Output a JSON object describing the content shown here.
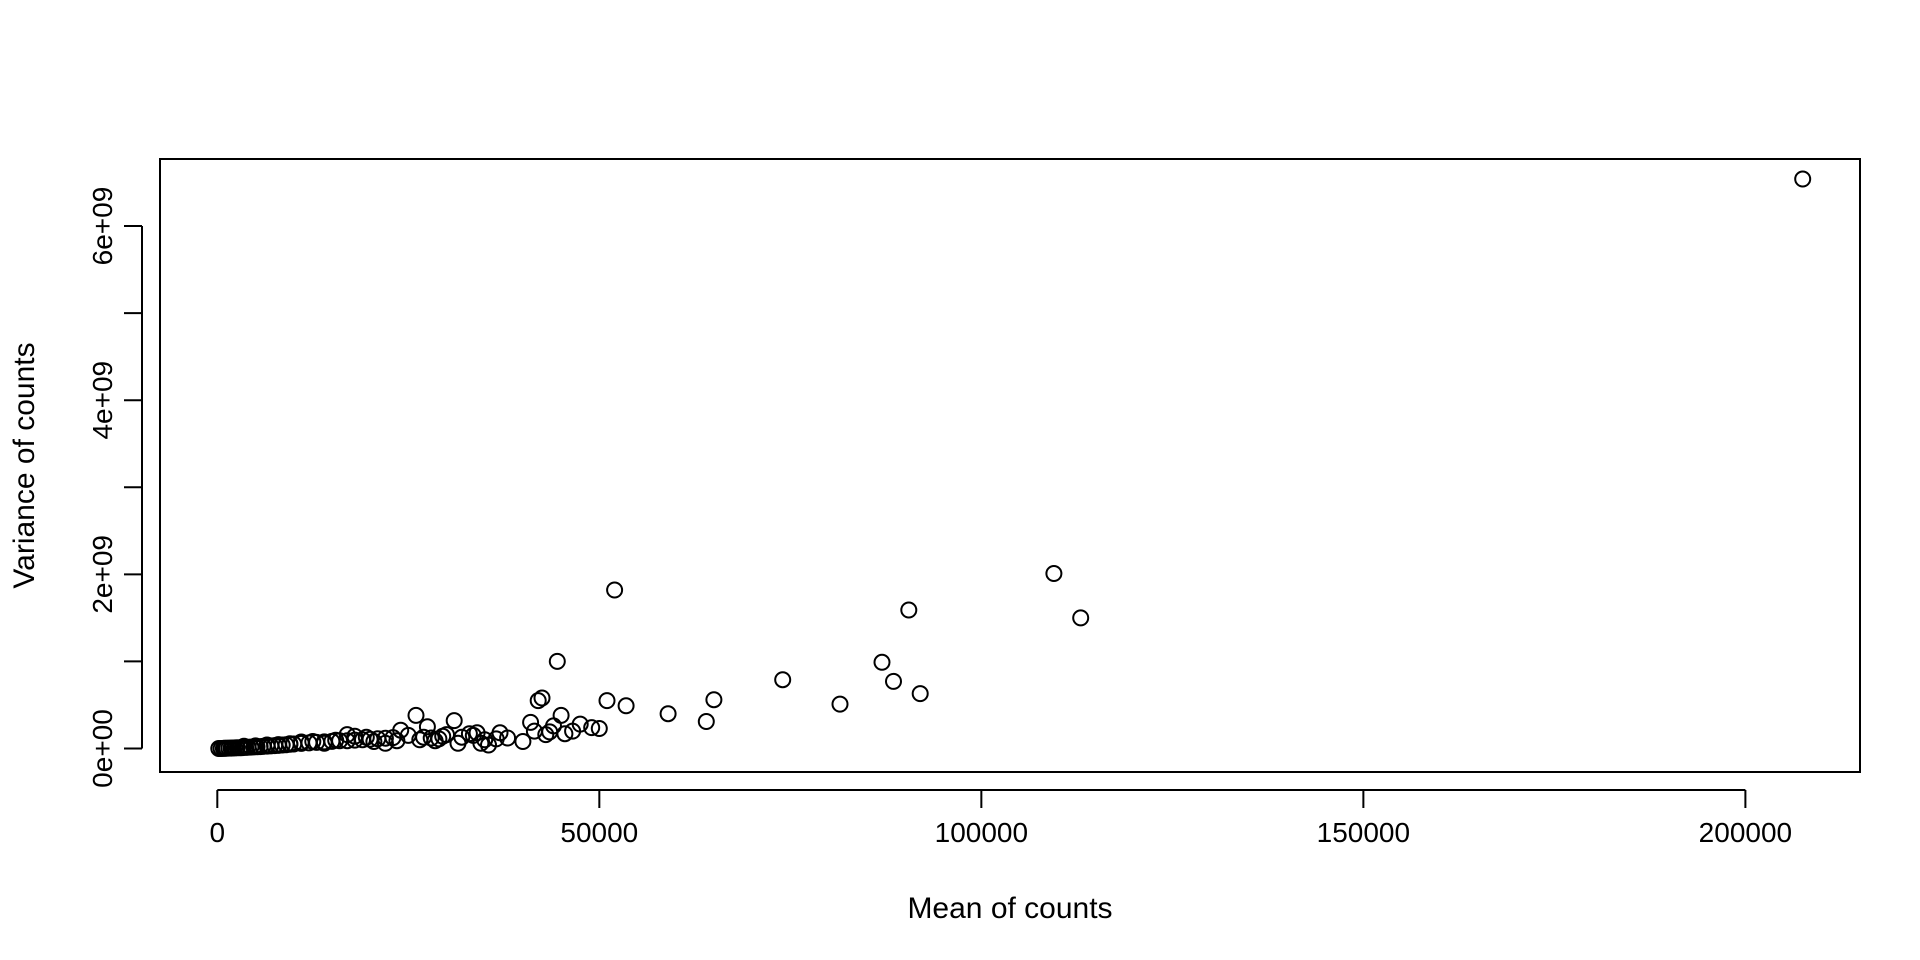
{
  "chart_data": {
    "type": "scatter",
    "title": "",
    "xlabel": "Mean of counts",
    "ylabel": "Variance of counts",
    "xlim": [
      -7500,
      215000
    ],
    "ylim": [
      -270000000,
      6770000000
    ],
    "x_ticks": [
      0,
      50000,
      100000,
      150000,
      200000
    ],
    "x_tick_labels": [
      "0",
      "50000",
      "100000",
      "150000",
      "200000"
    ],
    "y_ticks": [
      0,
      1000000000,
      2000000000,
      3000000000,
      4000000000,
      5000000000,
      6000000000
    ],
    "y_tick_labels": [
      "0e+00",
      "",
      "2e+09",
      "",
      "4e+09",
      "",
      "6e+09"
    ],
    "grid": false,
    "legend": "none",
    "marker": "open-circle",
    "series": [
      {
        "points": [
          [
            200,
            0
          ],
          [
            500,
            0
          ],
          [
            800,
            1000000
          ],
          [
            1000,
            2000000
          ],
          [
            1200,
            3000000
          ],
          [
            1500,
            4000000
          ],
          [
            1800,
            5000000
          ],
          [
            2000,
            6000000
          ],
          [
            2300,
            7000000
          ],
          [
            2600,
            8000000
          ],
          [
            3000,
            9000000
          ],
          [
            3300,
            10000000
          ],
          [
            3700,
            12000000
          ],
          [
            4000,
            14000000
          ],
          [
            4400,
            16000000
          ],
          [
            4800,
            18000000
          ],
          [
            5200,
            20000000
          ],
          [
            5600,
            22000000
          ],
          [
            6000,
            24000000
          ],
          [
            6500,
            27000000
          ],
          [
            7000,
            30000000
          ],
          [
            7500,
            33000000
          ],
          [
            8000,
            36000000
          ],
          [
            8500,
            40000000
          ],
          [
            9000,
            44000000
          ],
          [
            9500,
            48000000
          ],
          [
            10000,
            52000000
          ],
          [
            11000,
            58000000
          ],
          [
            12000,
            64000000
          ],
          [
            13000,
            70000000
          ],
          [
            14000,
            76000000
          ],
          [
            15000,
            82000000
          ],
          [
            16000,
            88000000
          ],
          [
            17000,
            90000000
          ],
          [
            18000,
            96000000
          ],
          [
            19000,
            100000000
          ],
          [
            20000,
            106000000
          ],
          [
            21000,
            112000000
          ],
          [
            22000,
            118000000
          ],
          [
            23000,
            125000000
          ],
          [
            3500,
            25000000
          ],
          [
            5000,
            30000000
          ],
          [
            6500,
            40000000
          ],
          [
            8000,
            45000000
          ],
          [
            9500,
            55000000
          ],
          [
            11000,
            75000000
          ],
          [
            12500,
            80000000
          ],
          [
            14000,
            60000000
          ],
          [
            15500,
            95000000
          ],
          [
            17000,
            160000000
          ],
          [
            18000,
            140000000
          ],
          [
            19500,
            130000000
          ],
          [
            20500,
            80000000
          ],
          [
            22000,
            60000000
          ],
          [
            23500,
            90000000
          ],
          [
            24000,
            210000000
          ],
          [
            25000,
            150000000
          ],
          [
            26000,
            380000000
          ],
          [
            26500,
            100000000
          ],
          [
            27000,
            130000000
          ],
          [
            27500,
            250000000
          ],
          [
            28000,
            120000000
          ],
          [
            28500,
            90000000
          ],
          [
            29000,
            110000000
          ],
          [
            29500,
            140000000
          ],
          [
            30000,
            160000000
          ],
          [
            31000,
            320000000
          ],
          [
            31500,
            60000000
          ],
          [
            32000,
            130000000
          ],
          [
            33000,
            170000000
          ],
          [
            33500,
            150000000
          ],
          [
            34000,
            180000000
          ],
          [
            34500,
            60000000
          ],
          [
            35000,
            100000000
          ],
          [
            35500,
            40000000
          ],
          [
            36500,
            110000000
          ],
          [
            37000,
            180000000
          ],
          [
            38000,
            120000000
          ],
          [
            40000,
            80000000
          ],
          [
            41000,
            300000000
          ],
          [
            41500,
            200000000
          ],
          [
            42000,
            550000000
          ],
          [
            42500,
            580000000
          ],
          [
            43000,
            160000000
          ],
          [
            43500,
            190000000
          ],
          [
            44000,
            260000000
          ],
          [
            44500,
            1000000000
          ],
          [
            45000,
            380000000
          ],
          [
            45500,
            170000000
          ],
          [
            46500,
            200000000
          ],
          [
            47500,
            280000000
          ],
          [
            49000,
            240000000
          ],
          [
            50000,
            230000000
          ],
          [
            51000,
            550000000
          ],
          [
            52000,
            1820000000
          ],
          [
            53500,
            490000000
          ],
          [
            59000,
            400000000
          ],
          [
            64000,
            310000000
          ],
          [
            65000,
            560000000
          ],
          [
            74000,
            790000000
          ],
          [
            81500,
            510000000
          ],
          [
            87000,
            990000000
          ],
          [
            88500,
            770000000
          ],
          [
            90500,
            1590000000
          ],
          [
            92000,
            630000000
          ],
          [
            109500,
            2010000000
          ],
          [
            113000,
            1500000000
          ],
          [
            207500,
            6540000000
          ]
        ]
      }
    ]
  }
}
